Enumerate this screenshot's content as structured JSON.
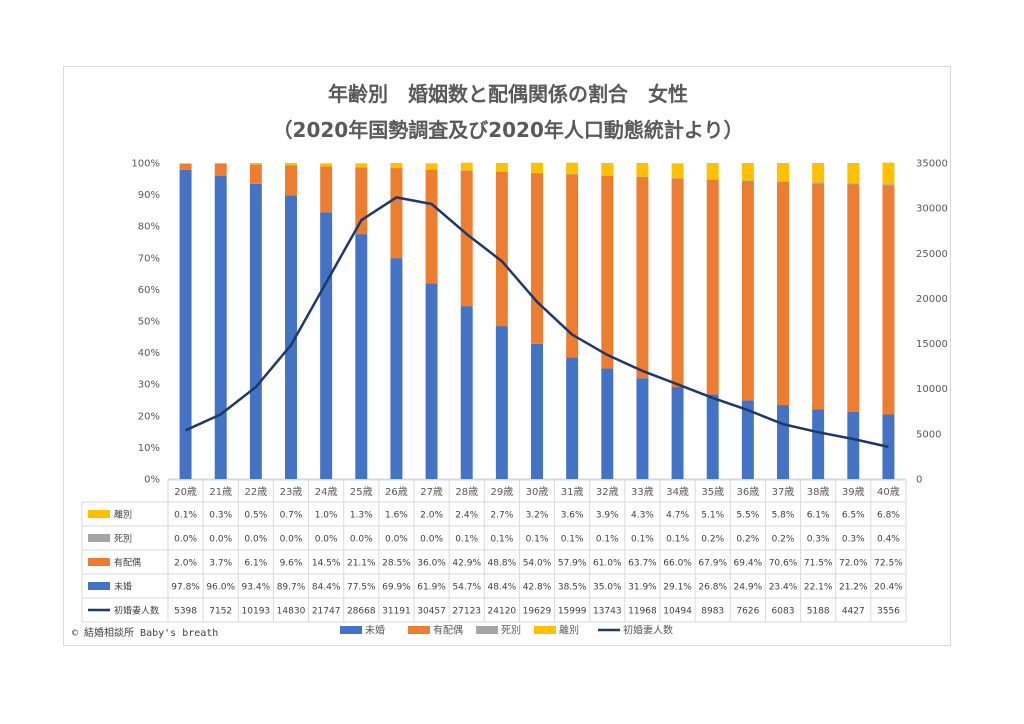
{
  "chart_data": {
    "type": "bar",
    "title_line1": "年齢別　婚姻数と配偶関係の割合　女性",
    "title_line2": "（2020年国勢調査及び2020年人口動態統計より）",
    "categories": [
      "20歳",
      "21歳",
      "22歳",
      "23歳",
      "24歳",
      "25歳",
      "26歳",
      "27歳",
      "28歳",
      "29歳",
      "30歳",
      "31歳",
      "32歳",
      "33歳",
      "34歳",
      "35歳",
      "36歳",
      "37歳",
      "38歳",
      "39歳",
      "40歳"
    ],
    "y_left": {
      "ticks": [
        "0%",
        "10%",
        "20%",
        "30%",
        "40%",
        "50%",
        "60%",
        "70%",
        "80%",
        "90%",
        "100%"
      ],
      "ylim": [
        0,
        100
      ]
    },
    "y_right": {
      "ticks": [
        "0",
        "5000",
        "10000",
        "15000",
        "20000",
        "25000",
        "30000",
        "35000"
      ],
      "ylim": [
        0,
        35000
      ]
    },
    "series": [
      {
        "name": "未婚",
        "kind": "bar",
        "color": "#4472C4",
        "values": [
          97.8,
          96.0,
          93.4,
          89.7,
          84.4,
          77.5,
          69.9,
          61.9,
          54.7,
          48.4,
          42.8,
          38.5,
          35.0,
          31.9,
          29.1,
          26.8,
          24.9,
          23.4,
          22.1,
          21.2,
          20.4
        ],
        "labels": [
          "97.8%",
          "96.0%",
          "93.4%",
          "89.7%",
          "84.4%",
          "77.5%",
          "69.9%",
          "61.9%",
          "54.7%",
          "48.4%",
          "42.8%",
          "38.5%",
          "35.0%",
          "31.9%",
          "29.1%",
          "26.8%",
          "24.9%",
          "23.4%",
          "22.1%",
          "21.2%",
          "20.4%"
        ]
      },
      {
        "name": "有配偶",
        "kind": "bar",
        "color": "#ED7D31",
        "values": [
          2.0,
          3.7,
          6.1,
          9.6,
          14.5,
          21.1,
          28.5,
          36.0,
          42.9,
          48.8,
          54.0,
          57.9,
          61.0,
          63.7,
          66.0,
          67.9,
          69.4,
          70.6,
          71.5,
          72.0,
          72.5
        ],
        "labels": [
          "2.0%",
          "3.7%",
          "6.1%",
          "9.6%",
          "14.5%",
          "21.1%",
          "28.5%",
          "36.0%",
          "42.9%",
          "48.8%",
          "54.0%",
          "57.9%",
          "61.0%",
          "63.7%",
          "66.0%",
          "67.9%",
          "69.4%",
          "70.6%",
          "71.5%",
          "72.0%",
          "72.5%"
        ]
      },
      {
        "name": "死別",
        "kind": "bar",
        "color": "#A5A5A5",
        "values": [
          0.0,
          0.0,
          0.0,
          0.0,
          0.0,
          0.0,
          0.0,
          0.0,
          0.1,
          0.1,
          0.1,
          0.1,
          0.1,
          0.1,
          0.1,
          0.2,
          0.2,
          0.2,
          0.3,
          0.3,
          0.4
        ],
        "labels": [
          "0.0%",
          "0.0%",
          "0.0%",
          "0.0%",
          "0.0%",
          "0.0%",
          "0.0%",
          "0.0%",
          "0.1%",
          "0.1%",
          "0.1%",
          "0.1%",
          "0.1%",
          "0.1%",
          "0.1%",
          "0.2%",
          "0.2%",
          "0.2%",
          "0.3%",
          "0.3%",
          "0.4%"
        ]
      },
      {
        "name": "離別",
        "kind": "bar",
        "color": "#FFC000",
        "values": [
          0.1,
          0.3,
          0.5,
          0.7,
          1.0,
          1.3,
          1.6,
          2.0,
          2.4,
          2.7,
          3.2,
          3.6,
          3.9,
          4.3,
          4.7,
          5.1,
          5.5,
          5.8,
          6.1,
          6.5,
          6.8
        ],
        "labels": [
          "0.1%",
          "0.3%",
          "0.5%",
          "0.7%",
          "1.0%",
          "1.3%",
          "1.6%",
          "2.0%",
          "2.4%",
          "2.7%",
          "3.2%",
          "3.6%",
          "3.9%",
          "4.3%",
          "4.7%",
          "5.1%",
          "5.5%",
          "5.8%",
          "6.1%",
          "6.5%",
          "6.8%"
        ]
      },
      {
        "name": "初婚妻人数",
        "kind": "line",
        "axis": "right",
        "color": "#203864",
        "values": [
          5398,
          7152,
          10193,
          14830,
          21747,
          28668,
          31191,
          30457,
          27123,
          24120,
          19629,
          15999,
          13743,
          11968,
          10494,
          8983,
          7626,
          6083,
          5188,
          4427,
          3556
        ],
        "labels": [
          "5398",
          "7152",
          "10193",
          "14830",
          "21747",
          "28668",
          "31191",
          "30457",
          "27123",
          "24120",
          "19629",
          "15999",
          "13743",
          "11968",
          "10494",
          "8983",
          "7626",
          "6083",
          "5188",
          "4427",
          "3556"
        ]
      }
    ],
    "table_row_order": [
      "離別",
      "死別",
      "有配偶",
      "未婚",
      "初婚妻人数"
    ],
    "legend_order": [
      "未婚",
      "有配偶",
      "死別",
      "離別",
      "初婚妻人数"
    ],
    "legend_position": "bottom",
    "grid": false
  },
  "footer": {
    "copyright": "©  結婚相談所 Baby's breath"
  }
}
